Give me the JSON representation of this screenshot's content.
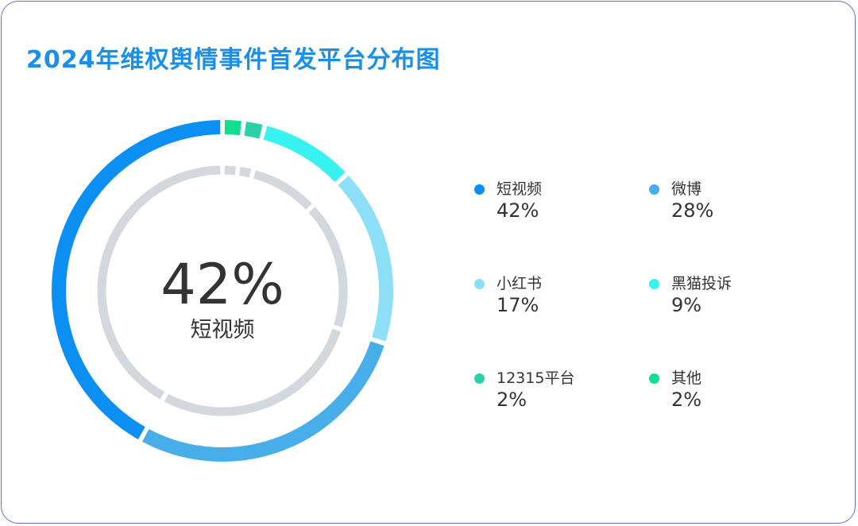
{
  "chart_data": {
    "type": "pie",
    "title": "2024年维权舆情事件首发平台分布图",
    "center": {
      "value": "42%",
      "label": "短视频"
    },
    "series": [
      {
        "name": "短视频",
        "value": 42,
        "label": "42%",
        "color": "#0b8ff2"
      },
      {
        "name": "微博",
        "value": 28,
        "label": "28%",
        "color": "#47aeea"
      },
      {
        "name": "小红书",
        "value": 17,
        "label": "17%",
        "color": "#8ddff8"
      },
      {
        "name": "黑猫投诉",
        "value": 9,
        "label": "9%",
        "color": "#38f2f2"
      },
      {
        "name": "12315平台",
        "value": 2,
        "label": "2%",
        "color": "#2dd1a9"
      },
      {
        "name": "其他",
        "value": 2,
        "label": "2%",
        "color": "#14dc90"
      }
    ],
    "legend": "right"
  },
  "colors": {
    "title": "#1a8fe8",
    "inner_ring": "#d3d7de",
    "border": "#5a73c8"
  }
}
